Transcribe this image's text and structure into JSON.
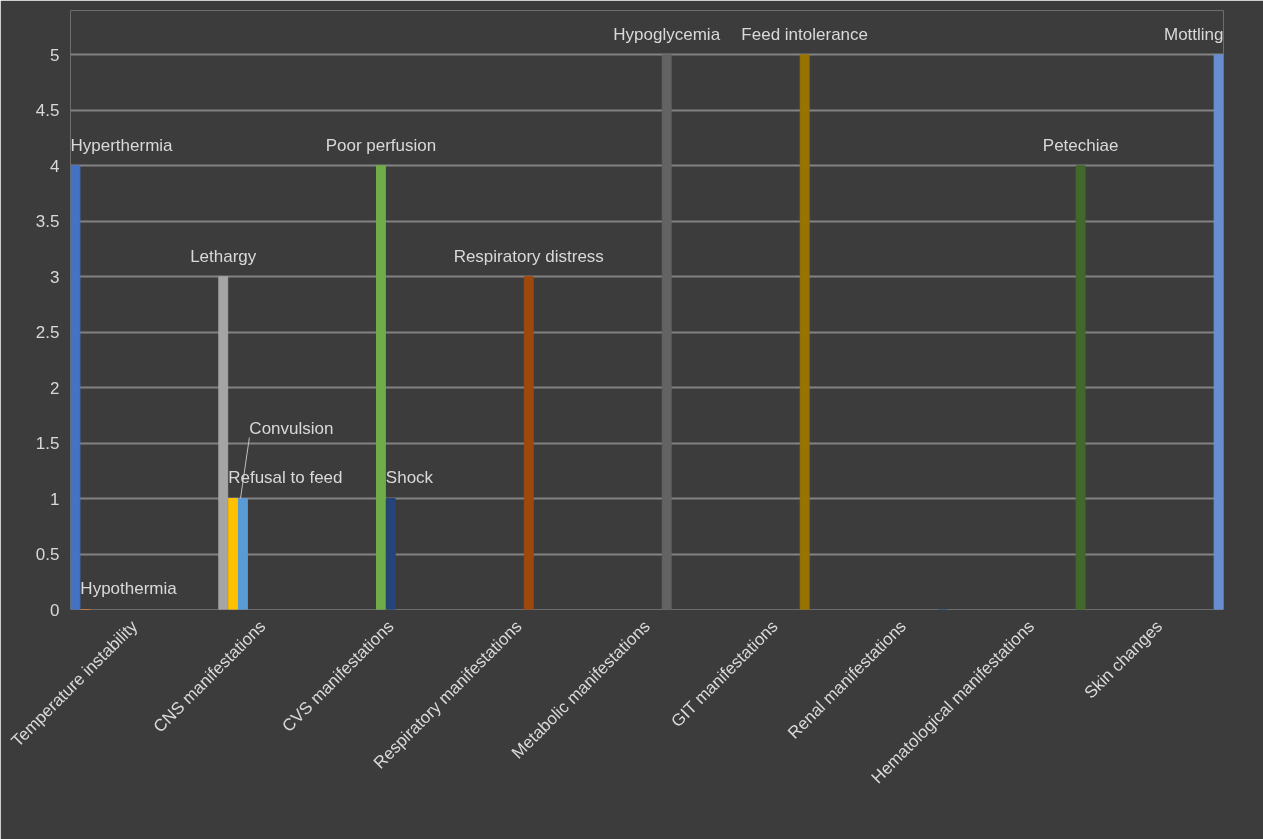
{
  "chart_data": {
    "type": "bar",
    "categories": [
      "Temperature instability",
      "CNS manifestations",
      "CVS manifestations",
      "Respiratory manifestations",
      "Metabolic manifestations",
      "GIT manifestations",
      "Renal manifestations",
      "Hematological manifestations",
      "Skin changes"
    ],
    "series": [
      {
        "name": "Hyperthermia",
        "color": "#4472c4",
        "values": [
          4,
          null,
          null,
          null,
          null,
          null,
          null,
          null,
          null
        ]
      },
      {
        "name": "Hypothermia",
        "color": "#ed7d31",
        "values": [
          0,
          null,
          null,
          null,
          null,
          null,
          null,
          null,
          null
        ]
      },
      {
        "name": "Lethargy",
        "color": "#a5a5a5",
        "values": [
          null,
          3,
          null,
          null,
          null,
          null,
          null,
          null,
          null
        ]
      },
      {
        "name": "Refusal to feed",
        "color": "#ffc000",
        "values": [
          null,
          1,
          null,
          null,
          null,
          null,
          null,
          null,
          null
        ]
      },
      {
        "name": "Convulsion",
        "color": "#5b9bd5",
        "values": [
          null,
          1,
          null,
          null,
          null,
          null,
          null,
          null,
          null
        ]
      },
      {
        "name": "Poor perfusion",
        "color": "#70ad47",
        "values": [
          null,
          null,
          4,
          null,
          null,
          null,
          null,
          null,
          null
        ]
      },
      {
        "name": "Shock",
        "color": "#264478",
        "values": [
          null,
          null,
          1,
          null,
          null,
          null,
          null,
          null,
          null
        ]
      },
      {
        "name": "Respiratory distress",
        "color": "#9e480e",
        "values": [
          null,
          null,
          null,
          3,
          null,
          null,
          null,
          null,
          null
        ]
      },
      {
        "name": "Hypoglycemia",
        "color": "#636363",
        "values": [
          null,
          null,
          null,
          null,
          5,
          null,
          null,
          null,
          null
        ]
      },
      {
        "name": "Feed intolerance",
        "color": "#997300",
        "values": [
          null,
          null,
          null,
          null,
          null,
          5,
          null,
          null,
          null
        ]
      },
      {
        "color": "#255e91",
        "values": [
          null,
          null,
          null,
          null,
          null,
          null,
          0,
          null,
          null
        ]
      },
      {
        "name": "Petechiae",
        "color": "#43682b",
        "values": [
          null,
          null,
          null,
          null,
          null,
          null,
          null,
          4,
          null
        ]
      },
      {
        "name": "Mottling",
        "color": "#698ed0",
        "values": [
          null,
          null,
          null,
          null,
          null,
          null,
          null,
          null,
          5
        ]
      }
    ],
    "ylim": [
      0,
      5
    ],
    "yticks": [
      0,
      0.5,
      1,
      1.5,
      2,
      2.5,
      3,
      3.5,
      4,
      4.5,
      5
    ],
    "grid": "y",
    "legend": false
  }
}
